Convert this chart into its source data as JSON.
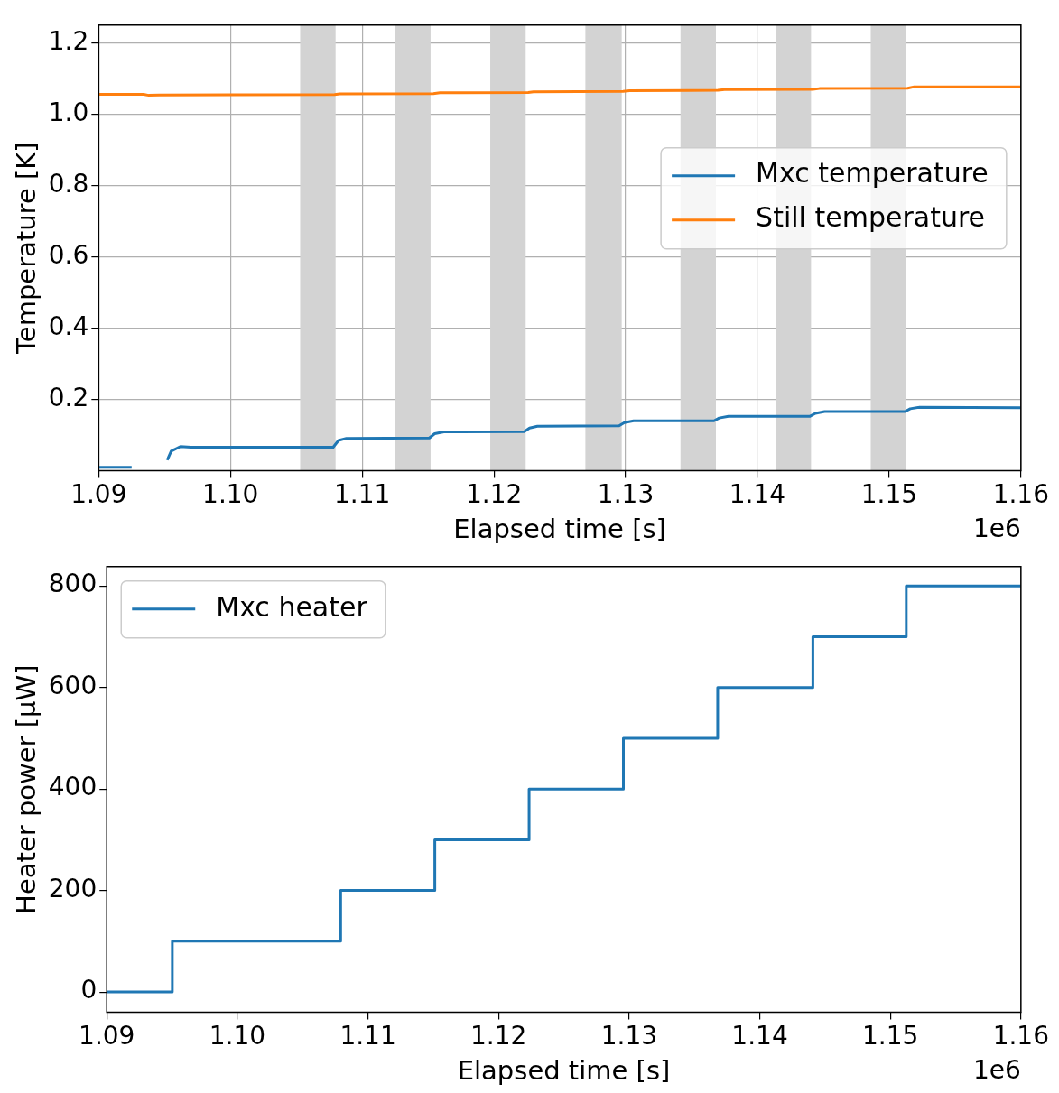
{
  "chart_data": [
    {
      "type": "line",
      "xlabel": "Elapsed time [s]",
      "ylabel": "Temperature [K]",
      "xlim": [
        1.09,
        1.16
      ],
      "xticks": [
        1.09,
        {
          "value": 1.1,
          "label": "1.10"
        },
        1.11,
        1.12,
        1.13,
        1.14,
        1.15,
        1.16
      ],
      "ylim": [
        0,
        1.25
      ],
      "yticks": [
        0.2,
        0.4,
        0.6,
        0.8,
        {
          "value": 1,
          "label": "1.0"
        },
        1.2
      ],
      "grid": true,
      "legend": "center right",
      "annotations": [
        "1e6"
      ],
      "bands": [
        {
          "axis": "x",
          "from": 1.10529,
          "to": 1.10798,
          "color": "#d3d3d3"
        },
        {
          "axis": "x",
          "from": 1.1125,
          "to": 1.11519,
          "color": "#d3d3d3"
        },
        {
          "axis": "x",
          "from": 1.11972,
          "to": 1.12241,
          "color": "#d3d3d3"
        },
        {
          "axis": "x",
          "from": 1.12694,
          "to": 1.1297,
          "color": "#d3d3d3"
        },
        {
          "axis": "x",
          "from": 1.13416,
          "to": 1.13685,
          "color": "#d3d3d3"
        },
        {
          "axis": "x",
          "from": 1.14138,
          "to": 1.14407,
          "color": "#d3d3d3"
        },
        {
          "axis": "x",
          "from": 1.1486,
          "to": 1.15129,
          "color": "#d3d3d3"
        }
      ],
      "series": [
        {
          "name": "Mxc temperature",
          "color": "#1f77b4",
          "x": [
            1.09,
            1.0925,
            1.0938,
            1.0952,
            1.0955,
            1.0962,
            1.097,
            1.1078,
            1.1082,
            1.1088,
            1.1151,
            1.1155,
            1.1162,
            1.1223,
            1.1227,
            1.1233,
            1.1295,
            1.1299,
            1.1306,
            1.1367,
            1.1371,
            1.1378,
            1.144,
            1.1444,
            1.1451,
            1.1512,
            1.1516,
            1.1523,
            1.16
          ],
          "values": [
            0.01,
            0.01,
            null,
            0.03,
            0.055,
            0.068,
            0.066,
            0.066,
            0.085,
            0.091,
            0.092,
            0.104,
            0.109,
            0.11,
            0.12,
            0.125,
            0.126,
            0.135,
            0.14,
            0.14,
            0.148,
            0.153,
            0.153,
            0.161,
            0.166,
            0.166,
            0.174,
            0.178,
            0.177
          ]
        },
        {
          "name": "Still temperature",
          "color": "#ff7f0e",
          "x": [
            1.09,
            1.0934,
            1.0938,
            1.0946,
            1.1079,
            1.1083,
            1.1154,
            1.1159,
            1.1226,
            1.123,
            1.1298,
            1.1303,
            1.137,
            1.1375,
            1.1442,
            1.1447,
            1.1514,
            1.1519,
            1.16
          ],
          "values": [
            1.056,
            1.056,
            1.053,
            1.054,
            1.055,
            1.057,
            1.058,
            1.06,
            1.061,
            1.063,
            1.064,
            1.066,
            1.067,
            1.069,
            1.07,
            1.072,
            1.073,
            1.077,
            1.077
          ]
        }
      ]
    },
    {
      "type": "step",
      "xlabel": "Elapsed time [s]",
      "ylabel": "Heater power [μW]",
      "xlim": [
        1.09,
        1.16
      ],
      "xticks": [
        1.09,
        {
          "value": 1.1,
          "label": "1.10"
        },
        1.11,
        1.12,
        1.13,
        1.14,
        1.15,
        1.16
      ],
      "ylim": [
        -40,
        838
      ],
      "yticks": [
        0,
        200,
        400,
        600,
        800
      ],
      "grid": false,
      "legend": "top left",
      "annotations": [
        "1e6"
      ],
      "series": [
        {
          "name": "Mxc heater",
          "color": "#1f77b4",
          "x": [
            1.09,
            1.09502,
            1.10791,
            1.11512,
            1.12234,
            1.12956,
            1.13678,
            1.14407,
            1.15122,
            1.16
          ],
          "values": [
            0,
            100,
            200,
            300,
            400,
            500,
            600,
            700,
            800,
            800
          ]
        }
      ]
    }
  ]
}
